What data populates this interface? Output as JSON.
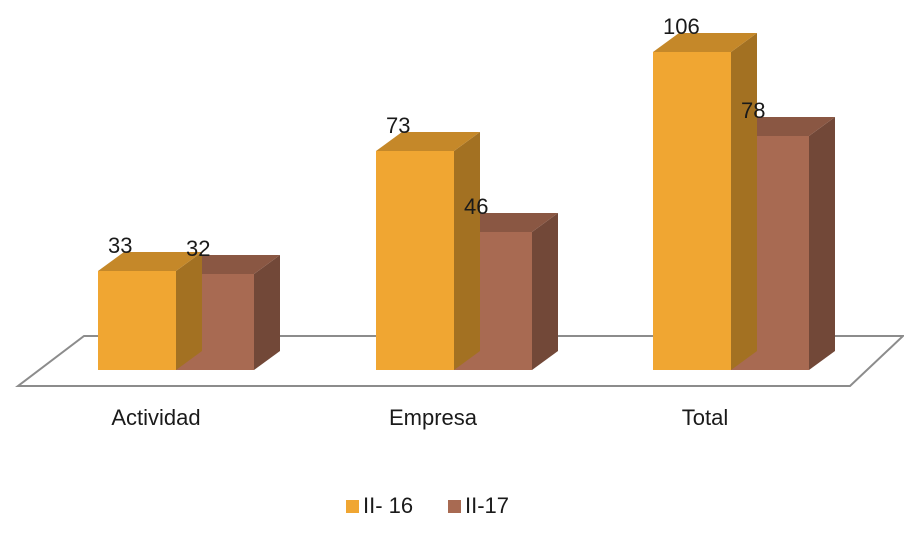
{
  "chart_data": {
    "type": "bar",
    "style": "3d-clustered-column",
    "categories": [
      "Actividad",
      "Empresa",
      "Total"
    ],
    "series": [
      {
        "name": "II- 16",
        "values": [
          33,
          73,
          106
        ],
        "color": "#f0a632"
      },
      {
        "name": "II-17",
        "values": [
          32,
          46,
          78
        ],
        "color": "#a86a52"
      }
    ],
    "title": "",
    "xlabel": "",
    "ylabel": "",
    "ylim": [
      0,
      110
    ],
    "grid": false,
    "legend_position": "bottom",
    "data_labels": true
  }
}
